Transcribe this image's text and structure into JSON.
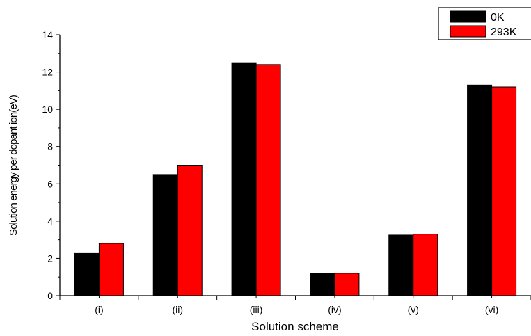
{
  "chart_data": {
    "type": "bar",
    "title": "",
    "xlabel": "Solution scheme",
    "ylabel": "Solution energy per dopant ion(eV)",
    "categories": [
      "(i)",
      "(ii)",
      "(iii)",
      "(iv)",
      "(v)",
      "(vi)"
    ],
    "ylim": [
      0,
      14
    ],
    "yticks": [
      "0",
      "2",
      "4",
      "6",
      "8",
      "10",
      "12",
      "14"
    ],
    "grid": false,
    "legend_position": "top-right",
    "series": [
      {
        "name": "0K",
        "color": "#000000",
        "values": [
          2.3,
          6.5,
          12.5,
          1.2,
          3.25,
          11.3
        ]
      },
      {
        "name": "293K",
        "color": "#ff0000",
        "values": [
          2.8,
          7.0,
          12.4,
          1.2,
          3.3,
          11.2
        ]
      }
    ]
  }
}
